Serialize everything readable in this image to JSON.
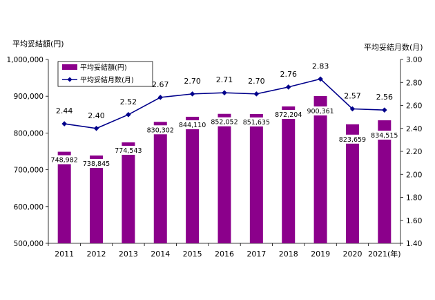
{
  "chart_data": {
    "type": "bar+line",
    "y_left_label": "平均妥結額(円)",
    "y_right_label": "平均妥結月数(月)",
    "x_suffix": "(年)",
    "categories": [
      "2011",
      "2012",
      "2013",
      "2014",
      "2015",
      "2016",
      "2017",
      "2018",
      "2019",
      "2020",
      "2021"
    ],
    "ylim_left": [
      500000,
      1000000
    ],
    "yticks_left": [
      "500,000",
      "600,000",
      "700,000",
      "800,000",
      "900,000",
      "1,000,000"
    ],
    "ylim_right": [
      1.4,
      3.0
    ],
    "yticks_right": [
      "1.40",
      "1.60",
      "1.80",
      "2.00",
      "2.20",
      "2.40",
      "2.60",
      "2.80",
      "3.00"
    ],
    "series": [
      {
        "name": "平均妥結額(円)",
        "type": "bar",
        "color": "#8B008B",
        "values": [
          748982,
          738845,
          774543,
          830302,
          844110,
          852052,
          851635,
          872204,
          900361,
          823659,
          834515
        ],
        "labels": [
          "748,982",
          "738,845",
          "774,543",
          "830,302",
          "844,110",
          "852,052",
          "851,635",
          "872,204",
          "900,361",
          "823,659",
          "834,515"
        ]
      },
      {
        "name": "平均妥結月数(月)",
        "type": "line",
        "color": "#00008B",
        "values": [
          2.44,
          2.4,
          2.52,
          2.67,
          2.7,
          2.71,
          2.7,
          2.76,
          2.83,
          2.57,
          2.56
        ],
        "labels": [
          "2.44",
          "2.40",
          "2.52",
          "2.67",
          "2.70",
          "2.71",
          "2.70",
          "2.76",
          "2.83",
          "2.57",
          "2.56"
        ]
      }
    ],
    "legend_position": "top-left",
    "grid": false
  }
}
